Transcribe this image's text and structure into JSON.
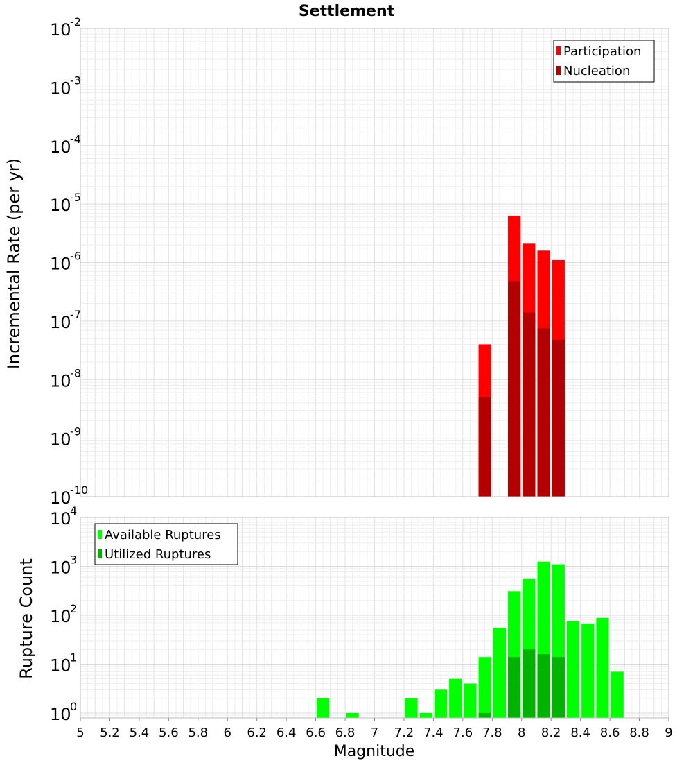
{
  "chart_data": {
    "type": "bar",
    "title": "Settlement",
    "xlabel": "Magnitude",
    "xlim": [
      5,
      9
    ],
    "xticks": [
      "5",
      "5.2",
      "5.4",
      "5.6",
      "5.8",
      "6",
      "6.2",
      "6.4",
      "6.6",
      "6.8",
      "7",
      "7.2",
      "7.4",
      "7.6",
      "7.8",
      "8",
      "8.2",
      "8.4",
      "8.6",
      "8.8",
      "9"
    ],
    "bin_width": 0.1,
    "panels": [
      {
        "id": "rate",
        "ylabel": "Incremental Rate (per yr)",
        "yscale": "log",
        "ylim_exp": [
          -10,
          -2
        ],
        "ytick_base": "10",
        "ytick_exps": [
          "-10",
          "-9",
          "-8",
          "-7",
          "-6",
          "-5",
          "-4",
          "-3",
          "-2"
        ],
        "legend": [
          "Participation",
          "Nucleation"
        ],
        "series": [
          {
            "name": "Participation",
            "color": "#ff0000",
            "x": [
              7.75,
              7.95,
              8.05,
              8.15,
              8.25
            ],
            "values": [
              4e-08,
              6.3e-06,
              2.1e-06,
              1.6e-06,
              1.1e-06
            ]
          },
          {
            "name": "Nucleation",
            "color": "#b30000",
            "x": [
              7.75,
              7.95,
              8.05,
              8.15,
              8.25
            ],
            "values": [
              5e-09,
              4.8e-07,
              1.4e-07,
              7.5e-08,
              4.8e-08
            ]
          }
        ]
      },
      {
        "id": "count",
        "ylabel": "Rupture Count",
        "yscale": "log",
        "ylim_exp": [
          -0.1,
          4
        ],
        "ytick_base": "10",
        "ytick_exps": [
          "0",
          "1",
          "2",
          "3",
          "4"
        ],
        "legend": [
          "Available Ruptures",
          "Utilized Ruptures"
        ],
        "series": [
          {
            "name": "Available Ruptures",
            "color": "#00ff00",
            "x": [
              6.65,
              6.85,
              7.25,
              7.35,
              7.45,
              7.55,
              7.65,
              7.75,
              7.85,
              7.95,
              8.05,
              8.15,
              8.25,
              8.35,
              8.45,
              8.55,
              8.65
            ],
            "values": [
              2,
              1,
              2,
              1,
              3,
              5,
              4,
              14,
              55,
              310,
              550,
              1250,
              1100,
              75,
              67,
              88,
              7
            ]
          },
          {
            "name": "Utilized Ruptures",
            "color": "#00b300",
            "x": [
              7.75,
              7.95,
              8.05,
              8.15,
              8.25
            ],
            "values": [
              1,
              14,
              20,
              16,
              14
            ]
          }
        ]
      }
    ]
  }
}
